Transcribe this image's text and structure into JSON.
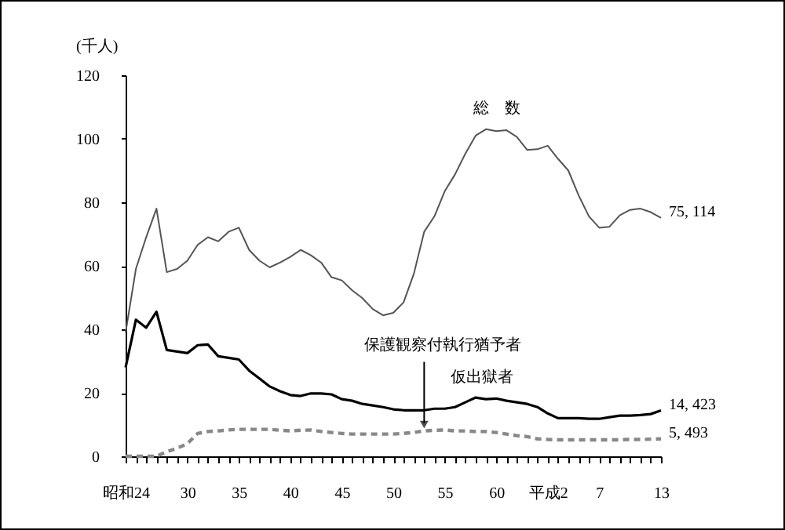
{
  "chart_data": {
    "type": "line",
    "ylabel": "(千人)",
    "categories": [
      "昭和24",
      null,
      null,
      null,
      null,
      null,
      "30",
      null,
      null,
      null,
      null,
      "35",
      null,
      null,
      null,
      null,
      "40",
      null,
      null,
      null,
      null,
      "45",
      null,
      null,
      null,
      null,
      "50",
      null,
      null,
      null,
      null,
      "55",
      null,
      null,
      null,
      null,
      "60",
      null,
      null,
      null,
      null,
      "平成2",
      null,
      null,
      null,
      null,
      "7",
      null,
      null,
      null,
      null,
      null,
      "13"
    ],
    "ylim": [
      0,
      120
    ],
    "yticks": [
      0,
      20,
      40,
      60,
      80,
      100,
      120
    ],
    "grid": false,
    "marker": "none",
    "series": [
      {
        "name": "総　数",
        "color": "#555555",
        "line_style": "solid",
        "values": [
          39,
          59,
          69,
          78,
          58,
          59,
          61.6,
          66.6,
          69,
          67.7,
          70.7,
          72,
          65,
          61.6,
          59.5,
          61,
          62.8,
          65,
          63.3,
          61,
          56.4,
          55.4,
          52.3,
          49.8,
          46.4,
          44.4,
          45.2,
          48.5,
          57.5,
          70.7,
          75.6,
          83.5,
          88.8,
          95.3,
          101,
          103,
          102.4,
          102.7,
          100.6,
          96.5,
          96.7,
          97.8,
          93.7,
          90,
          82.2,
          75.6,
          72,
          72.3,
          75.9,
          77.6,
          78,
          76.9,
          75.114
        ],
        "value_labels": [
          null,
          null,
          null,
          null,
          null,
          null,
          null,
          null,
          null,
          null,
          null,
          null,
          null,
          null,
          null,
          null,
          null,
          null,
          null,
          null,
          null,
          null,
          null,
          null,
          null,
          null,
          null,
          null,
          null,
          null,
          null,
          null,
          null,
          null,
          null,
          null,
          null,
          null,
          null,
          null,
          null,
          null,
          null,
          null,
          null,
          null,
          null,
          null,
          null,
          null,
          null,
          null,
          "75, 114"
        ]
      },
      {
        "name": "仮出獄者",
        "color": "#000000",
        "line_style": "solid",
        "values": [
          28,
          43,
          40.5,
          45.5,
          33.5,
          33,
          32.5,
          35,
          35.2,
          31.5,
          31,
          30.5,
          27,
          24.5,
          22,
          20.5,
          19.3,
          19,
          19.8,
          19.8,
          19.5,
          18,
          17.5,
          16.5,
          16,
          15.5,
          14.8,
          14.5,
          14.5,
          14.5,
          15,
          15,
          15.5,
          17,
          18.5,
          18,
          18.2,
          17.5,
          17,
          16.5,
          15.5,
          13.5,
          12,
          12,
          12,
          11.8,
          11.8,
          12.3,
          12.8,
          12.8,
          13,
          13.3,
          14.423
        ],
        "value_labels": [
          null,
          null,
          null,
          null,
          null,
          null,
          null,
          null,
          null,
          null,
          null,
          null,
          null,
          null,
          null,
          null,
          null,
          null,
          null,
          null,
          null,
          null,
          null,
          null,
          null,
          null,
          null,
          null,
          null,
          null,
          null,
          null,
          null,
          null,
          null,
          null,
          null,
          null,
          null,
          null,
          null,
          null,
          null,
          null,
          null,
          null,
          null,
          null,
          null,
          null,
          null,
          null,
          "14, 423"
        ]
      },
      {
        "name": "保護観察付執行猶予者",
        "color": "#888888",
        "line_style": "dashed",
        "values": [
          0,
          0,
          0,
          0,
          1.5,
          2.5,
          4,
          7.2,
          7.8,
          8,
          8.3,
          8.5,
          8.5,
          8.5,
          8.5,
          8.2,
          8,
          8.2,
          8.3,
          7.8,
          7.5,
          7.2,
          7,
          7,
          7,
          7,
          7,
          7.2,
          7.5,
          8,
          8.2,
          8.3,
          8,
          8,
          7.8,
          7.8,
          7.5,
          7,
          6.5,
          6.2,
          5.5,
          5.3,
          5.2,
          5.2,
          5.2,
          5.2,
          5.2,
          5.2,
          5.2,
          5.3,
          5.3,
          5.4,
          5.493
        ],
        "value_labels": [
          null,
          null,
          null,
          null,
          null,
          null,
          null,
          null,
          null,
          null,
          null,
          null,
          null,
          null,
          null,
          null,
          null,
          null,
          null,
          null,
          null,
          null,
          null,
          null,
          null,
          null,
          null,
          null,
          null,
          null,
          null,
          null,
          null,
          null,
          null,
          null,
          null,
          null,
          null,
          null,
          null,
          null,
          null,
          null,
          null,
          null,
          null,
          null,
          null,
          null,
          null,
          null,
          "5, 493"
        ]
      }
    ]
  }
}
